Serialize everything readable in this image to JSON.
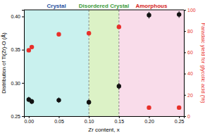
{
  "chart_data": {
    "type": "scatter",
    "x_label": "Zr content, x",
    "y_label": "Distribution of Ti(Zr)-O (Å)",
    "y2_label": "Faradaic yield for glycolic acid (%)",
    "xlim": [
      -0.008,
      0.258
    ],
    "xticks": [
      {
        "value": 0,
        "label": "0.00"
      },
      {
        "value": 0.05,
        "label": "0.05"
      },
      {
        "value": 0.1,
        "label": "0.10"
      },
      {
        "value": 0.15,
        "label": "0.15"
      },
      {
        "value": 0.2,
        "label": "0.20"
      },
      {
        "value": 0.25,
        "label": "0.25"
      }
    ],
    "ylim": [
      0.25,
      0.41
    ],
    "yticks": [
      0.25,
      {
        "value": 0.3,
        "label": "0.30"
      },
      0.35,
      {
        "value": 0.4,
        "label": "0.40"
      }
    ],
    "y2lim": [
      0,
      100
    ],
    "y2ticks": [
      0,
      20,
      40,
      60,
      80,
      100
    ],
    "regions": [
      {
        "label": "Crystal",
        "x0": -0.008,
        "x1": 0.1,
        "color": "#c9f1ee",
        "text_color": "#1f4fa0"
      },
      {
        "label": "Disordered Crystal",
        "x0": 0.1,
        "x1": 0.15,
        "color": "#dcf2c6",
        "text_color": "#3a9a3a"
      },
      {
        "label": "Amorphous",
        "x0": 0.15,
        "x1": 0.258,
        "color": "#f9dcea",
        "text_color": "#d42020"
      }
    ],
    "series": [
      {
        "axis": "y",
        "color": "#111111",
        "marker": "circle",
        "x": [
          0,
          0.005,
          0.05,
          0.1,
          0.15,
          0.2,
          0.25
        ],
        "values": [
          0.275,
          0.272,
          0.274,
          0.271,
          0.295,
          0.402,
          0.403
        ],
        "errors": [
          0.004,
          0.004,
          0.004,
          0.004,
          0.005,
          0.005,
          0.005
        ]
      },
      {
        "axis": "y2",
        "color": "#e8302a",
        "marker": "circle",
        "x": [
          0,
          0.005,
          0.05,
          0.1,
          0.15,
          0.2,
          0.25
        ],
        "values": [
          62,
          65,
          77,
          78,
          84,
          8,
          8
        ]
      }
    ]
  }
}
